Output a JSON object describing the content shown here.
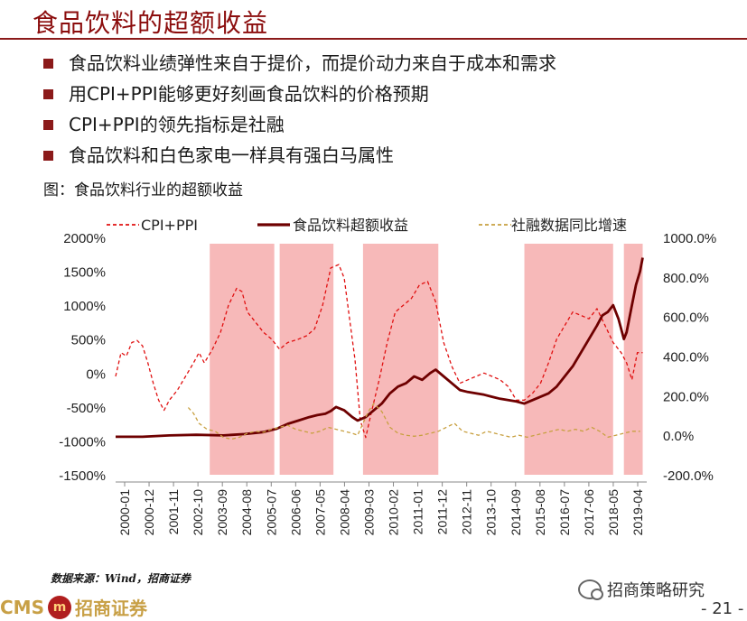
{
  "title": "食品饮料的超额收益",
  "bullets": [
    "食品饮料业绩弹性来自于提价，而提价动力来自于成本和需求",
    "用CPI+PPI能够更好刻画食品饮料的价格预期",
    "CPI+PPI的领先指标是社融",
    "食品饮料和白色家电一样具有强白马属性"
  ],
  "figure_title": "图：食品饮料行业的超额收益",
  "source": "数据来源：Wind，招商证券",
  "footer": {
    "logo": "CMS",
    "logo_cn": "招商证券",
    "wechat": "招商策略研究",
    "page": "- 21 -"
  },
  "colors": {
    "accent": "#8b1a1a",
    "shade": "#f7b9b9",
    "cpi_ppi": "#e01010",
    "excess": "#6e0000",
    "tsf": "#c8a040"
  },
  "chart_data": {
    "type": "line",
    "legend": [
      "CPI+PPI",
      "食品饮料超额收益",
      "社融数据同比增速"
    ],
    "x_ticks": [
      "2000-01",
      "2000-12",
      "2001-11",
      "2002-10",
      "2003-09",
      "2004-08",
      "2005-07",
      "2006-06",
      "2007-05",
      "2008-04",
      "2009-03",
      "2010-02",
      "2011-01",
      "2011-12",
      "2012-11",
      "2013-10",
      "2014-09",
      "2015-08",
      "2016-07",
      "2017-06",
      "2018-05",
      "2019-04"
    ],
    "y_left_ticks": [
      "2000%",
      "1500%",
      "1000%",
      "500%",
      "0%",
      "-500%",
      "-1000%",
      "-1500%"
    ],
    "y_right_ticks": [
      "1000.0%",
      "800.0%",
      "600.0%",
      "400.0%",
      "200.0%",
      "0.0%",
      "-200.0%"
    ],
    "ylim_left": [
      -1500,
      2000
    ],
    "ylim_right": [
      -200,
      1000
    ],
    "x_range": [
      2000.0,
      2019.75
    ],
    "shaded_periods": [
      [
        2003.5,
        2005.9
      ],
      [
        2006.1,
        2008.1
      ],
      [
        2009.2,
        2012.0
      ],
      [
        2015.2,
        2018.5
      ],
      [
        2018.9,
        2019.6
      ]
    ],
    "series": [
      {
        "name": "CPI+PPI",
        "axis": "left",
        "style": "dashed",
        "x": [
          2000.0,
          2000.2,
          2000.4,
          2000.6,
          2000.8,
          2001.0,
          2001.2,
          2001.4,
          2001.6,
          2001.8,
          2002.0,
          2002.3,
          2002.6,
          2002.9,
          2003.1,
          2003.3,
          2003.6,
          2003.9,
          2004.2,
          2004.5,
          2004.7,
          2004.9,
          2005.2,
          2005.5,
          2005.8,
          2006.1,
          2006.4,
          2006.8,
          2007.1,
          2007.4,
          2007.7,
          2008.0,
          2008.3,
          2008.5,
          2008.7,
          2008.9,
          2009.1,
          2009.3,
          2009.5,
          2009.8,
          2010.1,
          2010.4,
          2010.7,
          2011.0,
          2011.3,
          2011.6,
          2011.9,
          2012.2,
          2012.5,
          2012.8,
          2013.1,
          2013.4,
          2013.7,
          2014.0,
          2014.3,
          2014.6,
          2014.9,
          2015.2,
          2015.5,
          2015.8,
          2016.1,
          2016.4,
          2016.7,
          2017.0,
          2017.3,
          2017.6,
          2017.9,
          2018.2,
          2018.5,
          2018.8,
          2019.0,
          2019.2,
          2019.4,
          2019.6
        ],
        "y": [
          -50,
          300,
          250,
          450,
          480,
          400,
          150,
          -150,
          -400,
          -550,
          -400,
          -250,
          -50,
          150,
          300,
          150,
          350,
          600,
          1000,
          1250,
          1200,
          900,
          750,
          600,
          500,
          350,
          450,
          500,
          550,
          650,
          1000,
          1550,
          1600,
          1400,
          800,
          200,
          -700,
          -950,
          -600,
          -100,
          450,
          900,
          1000,
          1100,
          1300,
          1350,
          1050,
          450,
          100,
          -150,
          -100,
          -50,
          0,
          -50,
          -100,
          -200,
          -400,
          -400,
          -300,
          -150,
          150,
          500,
          700,
          900,
          850,
          800,
          950,
          700,
          450,
          300,
          150,
          -100,
          300,
          300
        ]
      },
      {
        "name": "食品饮料超额收益",
        "axis": "left",
        "style": "solid",
        "x": [
          2000.0,
          2001.0,
          2002.0,
          2003.0,
          2004.0,
          2004.8,
          2005.5,
          2006.0,
          2006.4,
          2006.8,
          2007.2,
          2007.5,
          2007.8,
          2008.0,
          2008.2,
          2008.5,
          2008.8,
          2009.0,
          2009.3,
          2009.6,
          2009.9,
          2010.2,
          2010.5,
          2010.8,
          2011.1,
          2011.4,
          2011.7,
          2011.9,
          2012.2,
          2012.5,
          2012.8,
          2013.1,
          2013.4,
          2013.7,
          2014.0,
          2014.3,
          2014.6,
          2014.9,
          2015.2,
          2015.5,
          2015.8,
          2016.1,
          2016.4,
          2016.7,
          2017.0,
          2017.3,
          2017.6,
          2017.9,
          2018.1,
          2018.3,
          2018.5,
          2018.7,
          2018.9,
          2019.0,
          2019.2,
          2019.35,
          2019.5,
          2019.6
        ],
        "y": [
          -940,
          -940,
          -920,
          -910,
          -920,
          -900,
          -870,
          -820,
          -750,
          -700,
          -650,
          -620,
          -600,
          -560,
          -500,
          -550,
          -650,
          -700,
          -650,
          -550,
          -450,
          -300,
          -200,
          -150,
          -50,
          -100,
          0,
          50,
          -50,
          -150,
          -250,
          -280,
          -300,
          -320,
          -350,
          -380,
          -400,
          -420,
          -450,
          -400,
          -350,
          -300,
          -200,
          -50,
          100,
          300,
          500,
          700,
          850,
          900,
          1000,
          800,
          500,
          600,
          1000,
          1300,
          1500,
          1700
        ]
      },
      {
        "name": "社融数据同比增速",
        "axis": "right",
        "style": "dashed",
        "x": [
          2002.7,
          2002.9,
          2003.1,
          2003.4,
          2003.7,
          2004.0,
          2004.3,
          2004.6,
          2004.9,
          2005.2,
          2005.5,
          2005.8,
          2006.1,
          2006.4,
          2006.7,
          2007.0,
          2007.3,
          2007.6,
          2007.9,
          2008.2,
          2008.5,
          2008.8,
          2009.0,
          2009.2,
          2009.4,
          2009.6,
          2009.9,
          2010.2,
          2010.5,
          2010.8,
          2011.1,
          2011.4,
          2011.7,
          2012.0,
          2012.3,
          2012.6,
          2012.9,
          2013.2,
          2013.5,
          2013.8,
          2014.1,
          2014.4,
          2014.7,
          2015.0,
          2015.3,
          2015.6,
          2015.9,
          2016.2,
          2016.5,
          2016.8,
          2017.1,
          2017.4,
          2017.7,
          2018.0,
          2018.3,
          2018.6,
          2018.9,
          2019.2,
          2019.5
        ],
        "y": [
          140,
          110,
          60,
          30,
          20,
          -10,
          -20,
          -10,
          10,
          20,
          15,
          30,
          40,
          50,
          30,
          20,
          10,
          20,
          40,
          30,
          20,
          10,
          0,
          60,
          120,
          160,
          120,
          40,
          10,
          0,
          -5,
          0,
          10,
          20,
          40,
          60,
          20,
          10,
          0,
          20,
          10,
          0,
          -10,
          0,
          -10,
          0,
          10,
          20,
          30,
          20,
          30,
          20,
          40,
          20,
          -10,
          0,
          10,
          20,
          20
        ]
      }
    ]
  }
}
